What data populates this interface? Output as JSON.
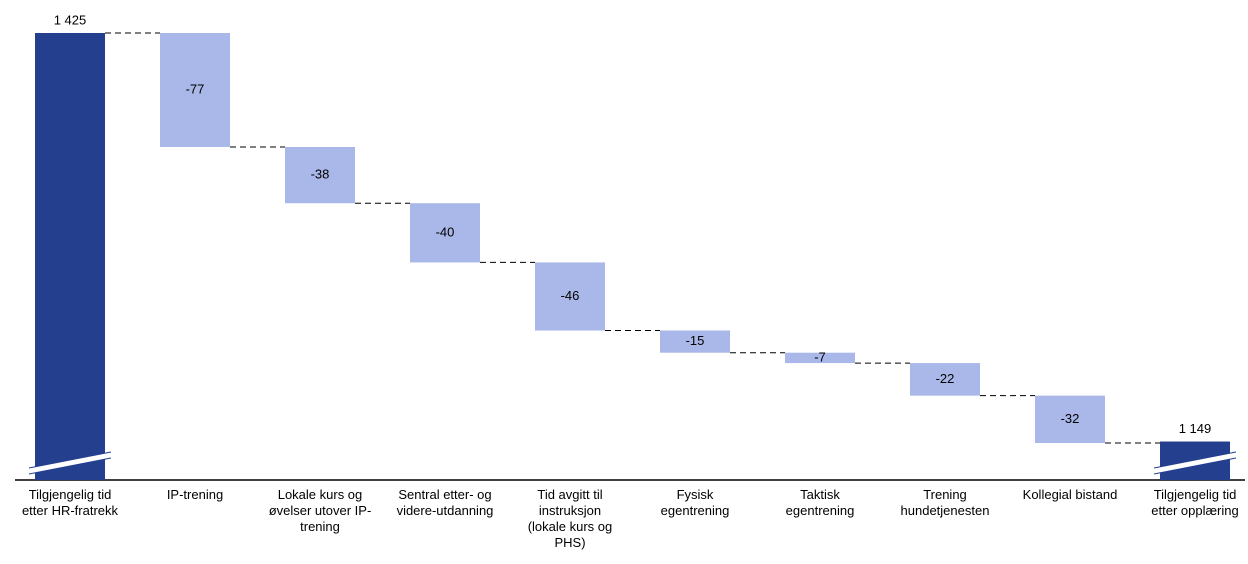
{
  "chart_data": {
    "type": "waterfall",
    "categories": [
      "Tilgjengelig tid etter HR-fratrekk",
      "IP-trening",
      "Lokale kurs og øvelser utover IP-trening",
      "Sentral etter- og videre-utdanning",
      "Tid avgitt til instruksjon (lokale kurs og PHS)",
      "Fysisk egentrening",
      "Taktisk egentrening",
      "Trening hundetjenesten",
      "Kollegial bistand",
      "Tilgjengelig tid etter opplæring"
    ],
    "values": [
      1425,
      -77,
      -38,
      -40,
      -46,
      -15,
      -7,
      -22,
      -32,
      1149
    ],
    "value_labels": [
      "1 425",
      "-77",
      "-38",
      "-40",
      "-46",
      "-15",
      "-7",
      "-22",
      "-32",
      "1 149"
    ],
    "total_color": "#253f8f",
    "delta_color": "#a9b8e8"
  }
}
